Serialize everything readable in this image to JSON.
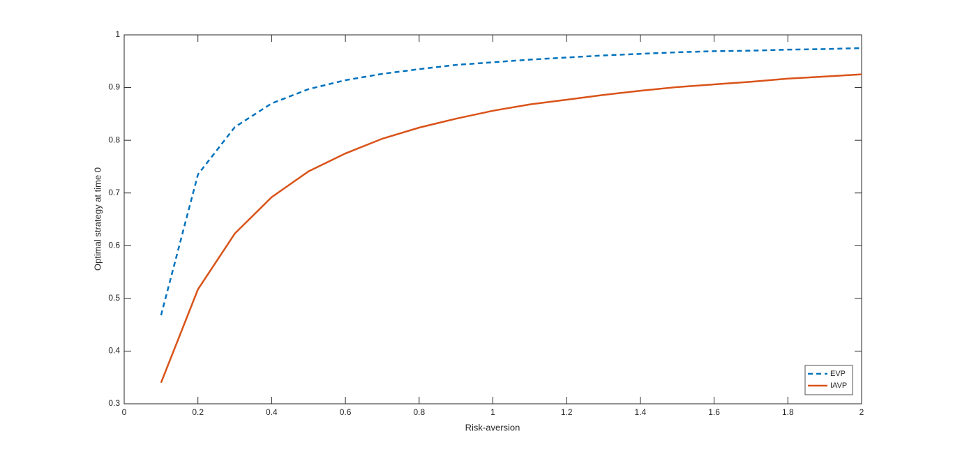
{
  "chart_data": {
    "type": "line",
    "xlabel": "Risk-aversion",
    "ylabel": "Optimal strategy at time 0",
    "x": [
      0.1,
      0.2,
      0.3,
      0.4,
      0.5,
      0.6,
      0.7,
      0.8,
      0.9,
      1.0,
      1.1,
      1.2,
      1.3,
      1.4,
      1.5,
      1.6,
      1.7,
      1.8,
      1.9,
      2.0
    ],
    "series": [
      {
        "name": "EVP",
        "color": "#0072bd",
        "dash": true,
        "values": [
          0.468,
          0.735,
          0.825,
          0.87,
          0.897,
          0.914,
          0.926,
          0.935,
          0.943,
          0.948,
          0.953,
          0.957,
          0.961,
          0.964,
          0.967,
          0.969,
          0.97,
          0.972,
          0.973,
          0.975
        ]
      },
      {
        "name": "IAVP",
        "color": "#d95319",
        "dash": false,
        "values": [
          0.34,
          0.517,
          0.623,
          0.692,
          0.741,
          0.775,
          0.803,
          0.824,
          0.841,
          0.856,
          0.868,
          0.877,
          0.886,
          0.894,
          0.901,
          0.906,
          0.911,
          0.917,
          0.921,
          0.925
        ]
      }
    ],
    "xlim": [
      0,
      2
    ],
    "xticks": [
      0,
      0.2,
      0.4,
      0.6,
      0.8,
      1,
      1.2,
      1.4,
      1.6,
      1.8,
      2
    ],
    "ylim": [
      0.3,
      1
    ],
    "yticks": [
      0.3,
      0.4,
      0.5,
      0.6,
      0.7,
      0.8,
      0.9,
      1
    ],
    "grid": false,
    "legend_position": "southeast"
  }
}
